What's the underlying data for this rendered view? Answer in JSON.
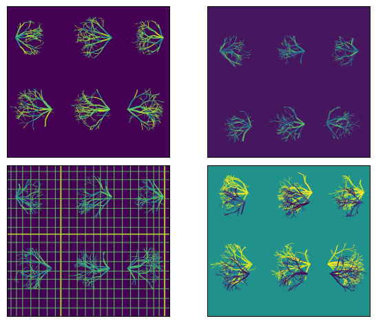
{
  "figure": {
    "layout": "2x2",
    "panels": [
      {
        "id": "top-left",
        "colormap": "viridis",
        "background": "#440154",
        "vessel_colors": [
          "#21918c",
          "#5ec962",
          "#b5de2b"
        ]
      },
      {
        "id": "top-right",
        "colormap": "viridis",
        "background": "#46175f",
        "vessel_colors": [
          "#3b528b",
          "#21918c",
          "#5ec962"
        ]
      },
      {
        "id": "bottom-left",
        "colormap": "viridis",
        "background": "#440154",
        "vessel_colors": [
          "#31688e",
          "#21918c",
          "#5ec962"
        ],
        "grid_color": "#b5de2b"
      },
      {
        "id": "bottom-right",
        "colormap": "viridis",
        "background": "#21918c",
        "vessel_colors": [
          "#fde725",
          "#b5de2b",
          "#3b528b",
          "#440154"
        ]
      }
    ]
  }
}
